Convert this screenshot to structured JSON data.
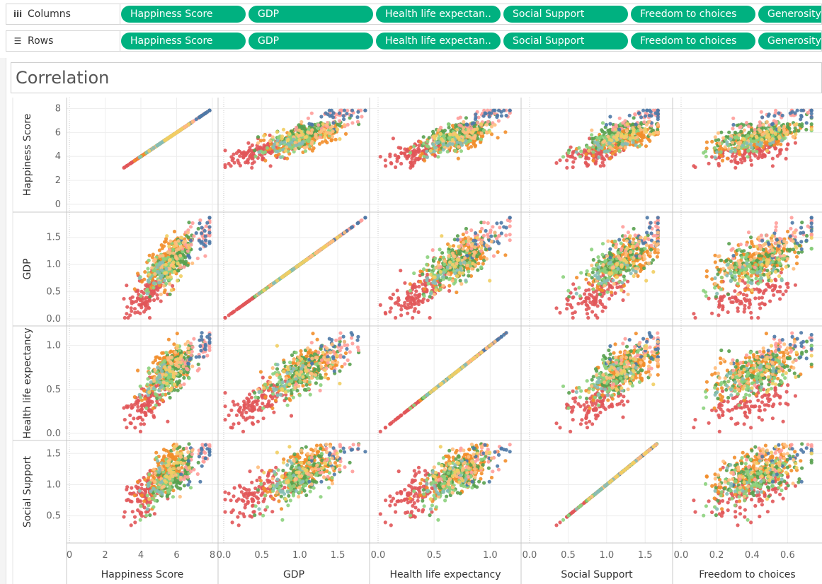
{
  "shelves": {
    "columns": {
      "label": "Columns",
      "icon": "columns-icon",
      "pills": [
        "Happiness Score",
        "GDP",
        "Health life expectan..",
        "Social Support",
        "Freedom to choices",
        "Generosity"
      ]
    },
    "rows": {
      "label": "Rows",
      "icon": "rows-icon",
      "pills": [
        "Happiness Score",
        "GDP",
        "Health life expectan..",
        "Social Support",
        "Freedom to choices",
        "Generosity"
      ]
    },
    "pill_color": "#00b180"
  },
  "chart_data": {
    "type": "scatter",
    "title": "Correlation",
    "columns": [
      {
        "name": "Happiness Score",
        "label": "Happiness Score",
        "ticks": [
          "0",
          "2",
          "4",
          "6",
          "8"
        ],
        "range": [
          0,
          8
        ]
      },
      {
        "name": "GDP",
        "label": "GDP",
        "ticks": [
          "0.0",
          "0.5",
          "1.0",
          "1.5"
        ],
        "range": [
          0,
          1.9
        ]
      },
      {
        "name": "Health life expectancy",
        "label": "Health life expectancy",
        "ticks": [
          "0.0",
          "0.5",
          "1.0"
        ],
        "range": [
          0,
          1.2
        ]
      },
      {
        "name": "Social Support",
        "label": "Social Support",
        "ticks": [
          "0.0",
          "0.5",
          "1.0",
          "1.5"
        ],
        "range": [
          0,
          1.7
        ]
      },
      {
        "name": "Freedom to choices",
        "label": "Freedom to choices",
        "ticks": [
          "0.0",
          "0.2",
          "0.4",
          "0.6"
        ],
        "range": [
          0,
          0.75
        ]
      }
    ],
    "rows": [
      {
        "name": "Happiness Score",
        "label": "Happiness Score",
        "ticks": [
          "0",
          "2",
          "4",
          "6",
          "8"
        ],
        "range": [
          0,
          8.5
        ]
      },
      {
        "name": "GDP",
        "label": "GDP",
        "ticks": [
          "0.0",
          "0.5",
          "1.0",
          "1.5"
        ],
        "range": [
          0,
          1.9
        ]
      },
      {
        "name": "Health life expectancy",
        "label": "Health life expectancy",
        "ticks": [
          "0.0",
          "0.5",
          "1.0"
        ],
        "range": [
          0,
          1.15
        ]
      },
      {
        "name": "Social Support",
        "label": "Social Support",
        "ticks": [
          "0.5",
          "1.0",
          "1.5"
        ],
        "range": [
          0.1,
          1.65
        ]
      }
    ],
    "color_groups": [
      {
        "color": "#e15759",
        "center": [
          4.3,
          0.45,
          0.35,
          0.85,
          0.38
        ]
      },
      {
        "color": "#f28e2b",
        "center": [
          5.5,
          1.05,
          0.72,
          1.25,
          0.42
        ]
      },
      {
        "color": "#59a14f",
        "center": [
          6.0,
          1.1,
          0.72,
          1.2,
          0.45
        ]
      },
      {
        "color": "#8cd17d",
        "center": [
          5.3,
          0.95,
          0.65,
          1.05,
          0.4
        ]
      },
      {
        "color": "#ff9d9a",
        "center": [
          7.2,
          1.45,
          0.95,
          1.5,
          0.55
        ]
      },
      {
        "color": "#4e79a7",
        "center": [
          7.4,
          1.4,
          0.95,
          1.5,
          0.6
        ]
      },
      {
        "color": "#ffbe7d",
        "center": [
          5.8,
          1.15,
          0.78,
          1.3,
          0.45
        ]
      },
      {
        "color": "#86bcb6",
        "center": [
          5.0,
          0.8,
          0.6,
          1.0,
          0.35
        ]
      },
      {
        "color": "#f1ce63",
        "center": [
          5.8,
          1.1,
          0.75,
          1.3,
          0.55
        ]
      }
    ],
    "grid": true,
    "legend": "none"
  }
}
